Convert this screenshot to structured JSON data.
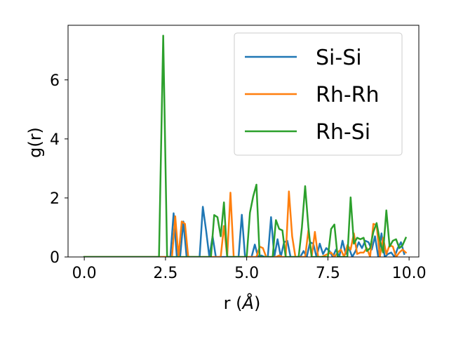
{
  "chart_data": {
    "type": "line",
    "xlabel": "r (",
    "xlabel_unit": "Å",
    "xlabel_close": ")",
    "ylabel": "g(r)",
    "xlim": [
      -0.5,
      10.3
    ],
    "ylim": [
      0,
      7.85
    ],
    "xticks": [
      0.0,
      2.5,
      5.0,
      7.5,
      10.0
    ],
    "xtick_labels": [
      "0.0",
      "2.5",
      "5.0",
      "7.5",
      "10.0"
    ],
    "yticks": [
      0,
      2,
      4,
      6
    ],
    "ytick_labels": [
      "0",
      "2",
      "4",
      "6"
    ],
    "grid": false,
    "legend_position": "upper right",
    "series": [
      {
        "name": "Si-Si",
        "color": "#1f77b4",
        "x": [
          0,
          0.5,
          1,
          1.5,
          2,
          2.3,
          2.4,
          2.5,
          2.55,
          2.65,
          2.75,
          2.85,
          2.95,
          3.05,
          3.15,
          3.25,
          3.35,
          3.45,
          3.55,
          3.65,
          3.75,
          3.85,
          3.95,
          4.05,
          4.15,
          4.25,
          4.35,
          4.45,
          4.55,
          4.65,
          4.75,
          4.85,
          4.95,
          5.05,
          5.15,
          5.25,
          5.35,
          5.45,
          5.55,
          5.65,
          5.75,
          5.85,
          5.95,
          6.05,
          6.15,
          6.25,
          6.35,
          6.45,
          6.55,
          6.65,
          6.75,
          6.85,
          6.95,
          7.05,
          7.15,
          7.25,
          7.35,
          7.45,
          7.55,
          7.65,
          7.75,
          7.85,
          7.95,
          8.05,
          8.15,
          8.25,
          8.35,
          8.45,
          8.55,
          8.65,
          8.75,
          8.85,
          8.95,
          9.05,
          9.15,
          9.25,
          9.35,
          9.45,
          9.55,
          9.65,
          9.75,
          9.85
        ],
        "y": [
          0,
          0,
          0,
          0,
          0,
          0,
          0,
          0,
          0,
          0,
          1.48,
          0,
          0,
          1.2,
          0,
          0,
          0,
          0,
          0,
          1.7,
          0.9,
          0,
          0.7,
          0,
          0,
          0,
          0,
          0,
          0,
          0,
          0,
          1.43,
          0,
          0,
          0,
          0.42,
          0,
          0.05,
          0,
          0,
          1.35,
          0,
          0.6,
          0,
          0.5,
          0.55,
          0,
          0,
          0,
          0,
          0.2,
          0,
          0.5,
          0.45,
          0,
          0.45,
          0.1,
          0.3,
          0.2,
          0,
          0.25,
          0,
          0.55,
          0.1,
          0.3,
          0,
          0.2,
          0.5,
          0.3,
          0.55,
          0.5,
          0.25,
          0.7,
          0,
          0.8,
          0,
          0.1,
          0.15,
          0,
          0.3,
          0.5,
          0.1
        ]
      },
      {
        "name": "Rh-Rh",
        "color": "#ff7f0e",
        "x": [
          0,
          0.5,
          1,
          1.5,
          2,
          2.3,
          2.4,
          2.5,
          2.6,
          2.7,
          2.8,
          2.9,
          3.0,
          3.1,
          3.2,
          3.3,
          3.4,
          3.5,
          3.6,
          3.7,
          3.8,
          3.9,
          4.0,
          4.1,
          4.2,
          4.3,
          4.4,
          4.5,
          4.6,
          4.7,
          4.8,
          4.9,
          5.0,
          5.1,
          5.2,
          5.3,
          5.4,
          5.5,
          5.6,
          5.7,
          5.8,
          5.9,
          6.0,
          6.1,
          6.2,
          6.3,
          6.4,
          6.5,
          6.6,
          6.7,
          6.8,
          6.9,
          7.0,
          7.1,
          7.2,
          7.3,
          7.4,
          7.5,
          7.6,
          7.7,
          7.8,
          7.9,
          8.0,
          8.1,
          8.2,
          8.3,
          8.4,
          8.5,
          8.6,
          8.7,
          8.8,
          8.9,
          9.0,
          9.1,
          9.2,
          9.3,
          9.4,
          9.5,
          9.6,
          9.7,
          9.8,
          9.9
        ],
        "y": [
          0,
          0,
          0,
          0,
          0,
          0,
          0,
          0,
          0,
          0,
          1.38,
          0,
          1.2,
          1.12,
          0,
          0,
          0,
          0,
          0,
          0,
          0,
          0,
          0,
          0,
          0,
          1.05,
          0,
          2.18,
          0,
          0,
          0,
          0,
          0,
          0,
          0,
          0,
          0.35,
          0.3,
          0,
          0,
          0,
          0,
          0.05,
          0,
          0,
          2.22,
          0.7,
          0,
          0,
          0,
          0,
          0.9,
          0,
          0.85,
          0,
          0,
          0.05,
          0.1,
          0.15,
          0,
          0.15,
          0.25,
          0,
          0.4,
          0.25,
          0.8,
          0.1,
          0.15,
          0.15,
          0.3,
          0,
          1.12,
          1.08,
          0,
          0.65,
          0.1,
          0.4,
          0.35,
          0,
          0.15,
          0.25,
          0.15
        ]
      },
      {
        "name": "Rh-Si",
        "color": "#2ca02c",
        "x": [
          0,
          0.5,
          1,
          1.5,
          2,
          2.25,
          2.3,
          2.43,
          2.55,
          2.6,
          2.7,
          2.8,
          2.9,
          3.0,
          3.1,
          3.2,
          3.3,
          3.4,
          3.5,
          3.6,
          3.7,
          3.8,
          3.9,
          4.0,
          4.1,
          4.2,
          4.3,
          4.4,
          4.5,
          4.6,
          4.7,
          4.8,
          4.9,
          5.0,
          5.1,
          5.2,
          5.3,
          5.4,
          5.5,
          5.6,
          5.7,
          5.8,
          5.9,
          6.0,
          6.1,
          6.2,
          6.3,
          6.4,
          6.5,
          6.6,
          6.7,
          6.8,
          6.9,
          7.0,
          7.1,
          7.2,
          7.3,
          7.4,
          7.5,
          7.6,
          7.7,
          7.8,
          7.9,
          8.0,
          8.1,
          8.2,
          8.3,
          8.4,
          8.5,
          8.6,
          8.7,
          8.8,
          8.9,
          9.0,
          9.1,
          9.2,
          9.3,
          9.4,
          9.5,
          9.6,
          9.7,
          9.8,
          9.9
        ],
        "y": [
          0,
          0,
          0,
          0,
          0,
          0,
          0,
          7.5,
          0,
          0,
          0,
          0,
          0,
          0,
          0,
          0,
          0,
          0,
          0,
          0,
          0,
          0,
          0,
          1.42,
          1.35,
          0.7,
          1.85,
          0,
          0,
          0,
          0,
          0,
          0,
          0,
          1.5,
          2.05,
          2.45,
          0,
          0,
          0,
          0,
          0,
          1.25,
          0.95,
          0.9,
          0,
          0,
          0,
          0,
          0,
          1.0,
          2.4,
          1.0,
          0,
          0,
          0,
          0,
          0,
          0,
          0.95,
          1.1,
          0,
          0,
          0,
          0,
          2.02,
          0.45,
          0.65,
          0.6,
          0.65,
          0.2,
          0.3,
          0.85,
          1.15,
          0.55,
          0.15,
          1.58,
          0.35,
          0.55,
          0.6,
          0.3,
          0.4,
          0.65
        ]
      }
    ]
  }
}
